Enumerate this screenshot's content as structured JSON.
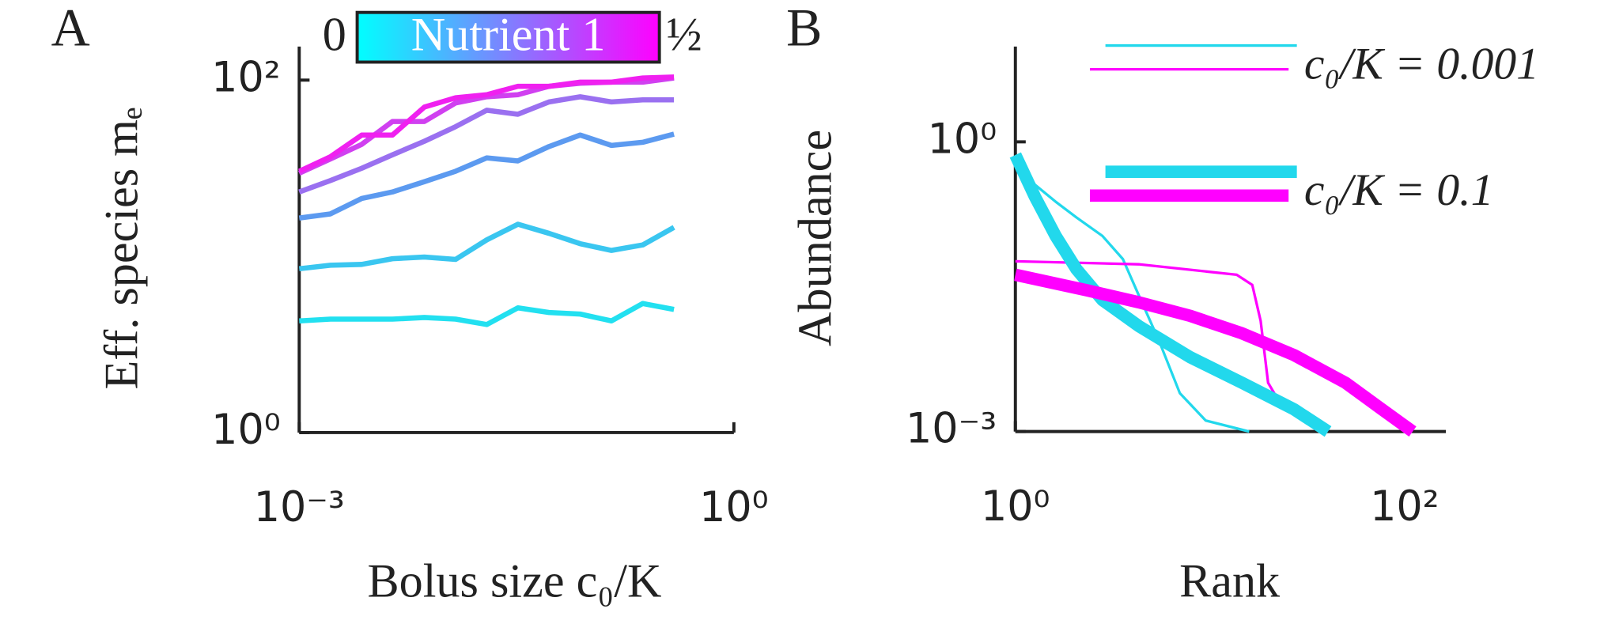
{
  "chart_data": [
    {
      "type": "line",
      "panel": "A",
      "xscale": "log",
      "yscale": "log",
      "x_label": "Bolus size c₀/K",
      "y_label": "Eff. species mₑ",
      "xlim": [
        0.001,
        1
      ],
      "ylim": [
        1,
        155
      ],
      "xticks": [
        {
          "value": 0.001,
          "label": "10⁻³"
        },
        {
          "value": 1,
          "label": "10⁰"
        }
      ],
      "yticks": [
        {
          "value": 1,
          "label": "10⁰"
        },
        {
          "value": 100,
          "label": "10²"
        }
      ],
      "colorbar": {
        "label": "Nutrient 1",
        "colors": [
          "#00ffff",
          "#ff00ff"
        ],
        "range": [
          0,
          0.5
        ],
        "ticks": [
          0,
          {
            "value": 0.5,
            "label": "½"
          }
        ]
      },
      "x": [
        0.001,
        0.00164,
        0.0027,
        0.0044,
        0.0073,
        0.012,
        0.0197,
        0.0323,
        0.053,
        0.087,
        0.143,
        0.235,
        0.386
      ],
      "series": [
        {
          "color": "#22e0f0",
          "values": [
            4.3,
            4.4,
            4.4,
            4.4,
            4.5,
            4.4,
            4.1,
            5.1,
            4.8,
            4.7,
            4.3,
            5.4,
            5.0
          ]
        },
        {
          "color": "#3ac6f0",
          "values": [
            8.5,
            8.9,
            9.0,
            9.7,
            9.9,
            9.6,
            12.4,
            15.2,
            13.5,
            11.8,
            10.8,
            11.6,
            14.6
          ]
        },
        {
          "color": "#5c9af0",
          "values": [
            16.5,
            17.4,
            21.3,
            23.2,
            26.5,
            30.4,
            36.2,
            34.8,
            42,
            48.8,
            42.6,
            44.4,
            49.4
          ]
        },
        {
          "color": "#9a70f0",
          "values": [
            23.2,
            26.9,
            31.6,
            37.7,
            45,
            54.4,
            67.5,
            64,
            75.2,
            80.5,
            75.2,
            77.3,
            77.3
          ]
        },
        {
          "color": "#d040f0",
          "values": [
            29.6,
            35.7,
            43.2,
            58.2,
            58.2,
            74.2,
            80.5,
            82.7,
            92.2,
            96,
            97.3,
            97.3,
            102.7
          ]
        },
        {
          "color": "#f020f0",
          "values": [
            30.4,
            36.7,
            48.8,
            48.8,
            70.3,
            79.4,
            82.7,
            92.2,
            92.2,
            97.3,
            97.3,
            102.7,
            104.2
          ]
        }
      ]
    },
    {
      "type": "line",
      "panel": "B",
      "xscale": "log",
      "yscale": "log",
      "x_label": "Rank",
      "y_label": "Abundance",
      "xlim": [
        1,
        163
      ],
      "ylim": [
        0.001,
        9.7
      ],
      "xticks": [
        {
          "value": 1,
          "label": "10⁰"
        },
        {
          "value": 100,
          "label": "10²"
        }
      ],
      "yticks": [
        {
          "value": 0.001,
          "label": "10⁻³"
        },
        {
          "value": 1,
          "label": "10⁰"
        }
      ],
      "series": [
        {
          "name": "c₀/K = 0.001",
          "linewidth": 2.5,
          "curves": [
            {
              "color": "#22d8ec",
              "x": [
                1,
                1.26,
                1.61,
                2.06,
                2.8,
                3.57,
                4.3,
                5.5,
                7.0,
                9.5,
                15.9
              ],
              "values": [
                0.73,
                0.36,
                0.24,
                0.165,
                0.106,
                0.061,
                0.026,
                0.0085,
                0.0025,
                0.0013,
                0.001
              ]
            },
            {
              "color": "#ff00ff",
              "x": [
                1,
                4.3,
                13.7,
                16.5,
                18.2,
                19.9,
                23.9,
                40.4
              ],
              "values": [
                0.058,
                0.054,
                0.042,
                0.033,
                0.014,
                0.0032,
                0.0017,
                0.00105
              ]
            }
          ]
        },
        {
          "name": "c₀/K = 0.1",
          "linewidth": 12,
          "curves": [
            {
              "color": "#22d8ec",
              "x": [
                1,
                1.26,
                1.61,
                2.06,
                2.8,
                4.3,
                7.9,
                14.6,
                27,
                40.4
              ],
              "values": [
                0.73,
                0.27,
                0.106,
                0.048,
                0.023,
                0.0124,
                0.0059,
                0.0032,
                0.0017,
                0.001
              ]
            },
            {
              "color": "#ff00ff",
              "x": [
                1,
                2.33,
                4.3,
                7.9,
                14.6,
                27,
                49.7,
                76.4,
                110
              ],
              "values": [
                0.042,
                0.029,
                0.0218,
                0.0158,
                0.0104,
                0.0062,
                0.0032,
                0.0017,
                0.001
              ]
            }
          ]
        }
      ]
    }
  ]
}
